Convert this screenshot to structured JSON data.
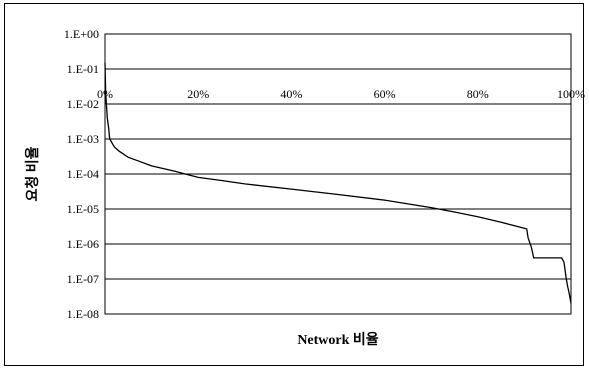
{
  "chart_data": {
    "type": "line",
    "title": "",
    "xlabel": "Network 비율",
    "ylabel": "요청 비율",
    "y_scale": "log",
    "ylim": [
      1e-08,
      1
    ],
    "xlim": [
      0,
      100
    ],
    "grid": true,
    "legend": "none",
    "x_tick_labels": [
      "0%",
      "20%",
      "40%",
      "60%",
      "80%",
      "100%"
    ],
    "y_tick_labels": [
      "1.E+00",
      "1.E-01",
      "1.E-02",
      "1.E-03",
      "1.E-04",
      "1.E-05",
      "1.E-06",
      "1.E-07",
      "1.E-08"
    ],
    "series": [
      {
        "x": [
          0,
          0.15,
          0.3,
          0.5,
          0.8,
          1,
          2,
          3,
          5,
          7,
          10,
          15,
          20,
          25,
          30,
          40,
          50,
          60,
          65,
          70,
          75,
          80,
          85,
          88,
          90.5,
          90.8,
          91.5,
          92,
          93,
          95,
          97,
          98,
          98.5,
          99,
          99.3,
          99.6,
          100
        ],
        "y": [
          0.15,
          0.02,
          0.01,
          0.004,
          0.002,
          0.001,
          0.0006,
          0.00045,
          0.0003,
          0.00024,
          0.00017,
          0.00012,
          8e-05,
          6.5e-05,
          5.2e-05,
          3.7e-05,
          2.6e-05,
          1.8e-05,
          1.4e-05,
          1.1e-05,
          8.2e-06,
          6e-06,
          4.2e-06,
          3.3e-06,
          2.7e-06,
          1.5e-06,
          8e-07,
          4e-07,
          4e-07,
          4e-07,
          4e-07,
          4e-07,
          3e-07,
          1e-07,
          6e-08,
          4e-08,
          2e-08
        ]
      }
    ],
    "colors": {
      "line": "#000000",
      "grid": "#000000",
      "frame": "#000000"
    }
  }
}
